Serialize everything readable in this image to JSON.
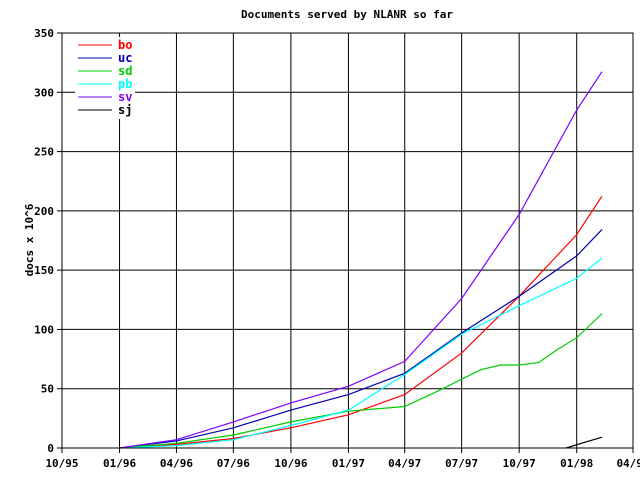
{
  "chart_data": {
    "type": "line",
    "title": "Documents served by NLANR so far",
    "xlabel": "",
    "ylabel": "docs x 10^6",
    "xlim": [
      "1995-10-01",
      "1998-04-01"
    ],
    "ylim": [
      0,
      350
    ],
    "grid": true,
    "legend_position": "top-left",
    "x_ticks": [
      {
        "date": "1995-10-01",
        "label": "10/95"
      },
      {
        "date": "1996-01-01",
        "label": "01/96"
      },
      {
        "date": "1996-04-01",
        "label": "04/96"
      },
      {
        "date": "1996-07-01",
        "label": "07/96"
      },
      {
        "date": "1996-10-01",
        "label": "10/96"
      },
      {
        "date": "1997-01-01",
        "label": "01/97"
      },
      {
        "date": "1997-04-01",
        "label": "04/97"
      },
      {
        "date": "1997-07-01",
        "label": "07/97"
      },
      {
        "date": "1997-10-01",
        "label": "10/97"
      },
      {
        "date": "1998-01-01",
        "label": "01/98"
      },
      {
        "date": "1998-04-01",
        "label": "04/98"
      }
    ],
    "y_ticks": [
      0,
      50,
      100,
      150,
      200,
      250,
      300,
      350
    ],
    "series": [
      {
        "name": "bo",
        "color": "#ff0000",
        "x": [
          "1996-01-01",
          "1996-04-01",
          "1996-07-01",
          "1996-10-01",
          "1997-01-01",
          "1997-04-01",
          "1997-07-01",
          "1997-10-01",
          "1998-01-01",
          "1998-02-10"
        ],
        "y": [
          0,
          3,
          8,
          17,
          28,
          45,
          80,
          128,
          180,
          212
        ]
      },
      {
        "name": "uc",
        "color": "#0000b0",
        "x": [
          "1996-01-01",
          "1996-04-01",
          "1996-07-01",
          "1996-10-01",
          "1997-01-01",
          "1997-04-01",
          "1997-07-01",
          "1997-10-01",
          "1998-01-01",
          "1998-02-10"
        ],
        "y": [
          0,
          6,
          17,
          32,
          45,
          63,
          97,
          128,
          162,
          184
        ]
      },
      {
        "name": "sd",
        "color": "#00cc00",
        "x": [
          "1996-01-01",
          "1996-04-01",
          "1996-07-01",
          "1996-10-01",
          "1997-01-01",
          "1997-04-01",
          "1997-06-01",
          "1997-07-01",
          "1997-08-01",
          "1997-09-01",
          "1997-10-01",
          "1997-11-01",
          "1997-12-01",
          "1998-01-01",
          "1998-02-10"
        ],
        "y": [
          0,
          4,
          11,
          22,
          31,
          35,
          50,
          58,
          66,
          70,
          70,
          72,
          83,
          93,
          113
        ]
      },
      {
        "name": "pb",
        "color": "#00ffff",
        "x": [
          "1996-01-01",
          "1996-04-01",
          "1996-07-01",
          "1996-10-01",
          "1997-01-01",
          "1997-04-01",
          "1997-07-01",
          "1997-10-01",
          "1998-01-01",
          "1998-02-10"
        ],
        "y": [
          0,
          2,
          7,
          19,
          32,
          62,
          96,
          120,
          143,
          160
        ]
      },
      {
        "name": "sv",
        "color": "#8000ff",
        "x": [
          "1996-01-01",
          "1996-04-01",
          "1996-07-01",
          "1996-10-01",
          "1997-01-01",
          "1997-04-01",
          "1997-07-01",
          "1997-10-01",
          "1998-01-01",
          "1998-02-10"
        ],
        "y": [
          0,
          7,
          22,
          38,
          52,
          73,
          126,
          197,
          285,
          317
        ]
      },
      {
        "name": "sj",
        "color": "#000000",
        "x": [
          "1997-12-15",
          "1998-01-15",
          "1998-02-10"
        ],
        "y": [
          0,
          5,
          9
        ]
      }
    ]
  }
}
